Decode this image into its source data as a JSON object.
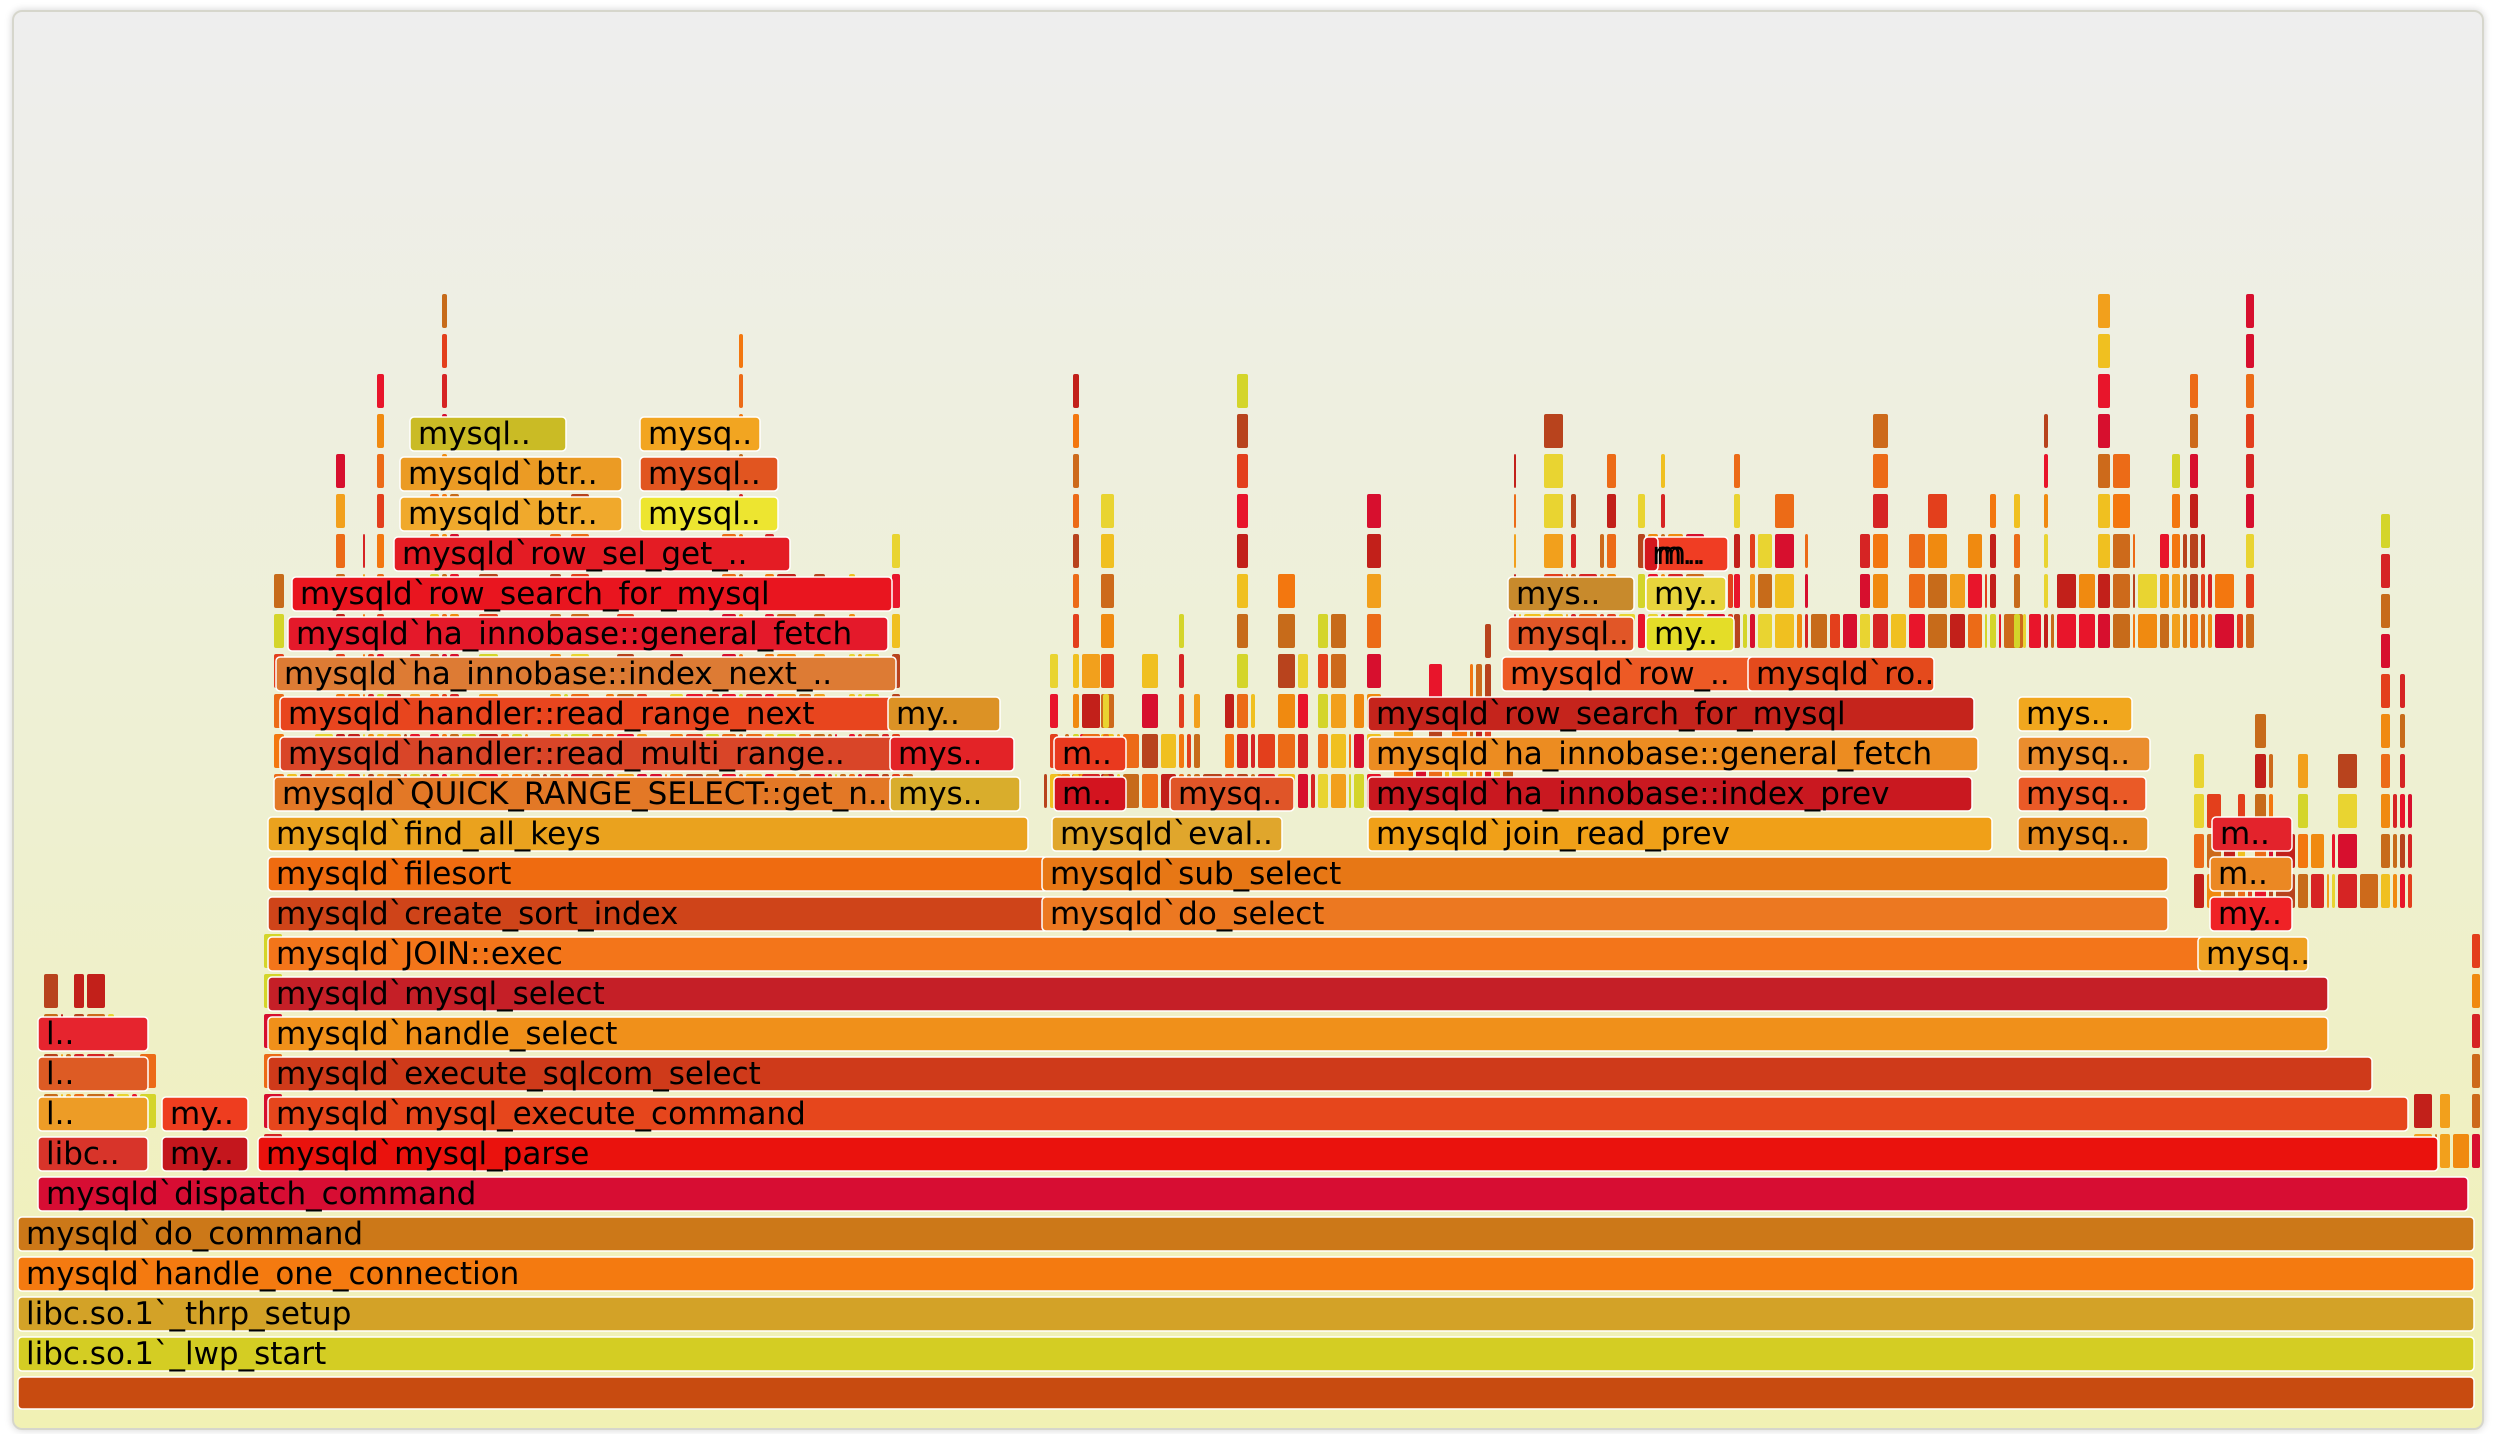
{
  "palette": [
    "#e8152b",
    "#ec6b17",
    "#c2201a",
    "#f2a01c",
    "#d4d52a",
    "#cd6a1b",
    "#f3770f",
    "#d70f2e",
    "#e33f1c",
    "#c76b1a",
    "#f0c020",
    "#d62424",
    "#b8431d",
    "#f08a10",
    "#e9d431"
  ],
  "flamegraph": {
    "frames": [
      {
        "label": "",
        "color": "#c84b10"
      },
      {
        "label": "libc.so.1`_lwp_start",
        "color": "#d4cd23"
      },
      {
        "label": "libc.so.1`_thrp_setup",
        "color": "#d3a227"
      },
      {
        "label": "mysqld`handle_one_connection",
        "color": "#f47a10"
      },
      {
        "label": "mysqld`do_command",
        "color": "#cc7818"
      },
      {
        "label": "mysqld`dispatch_command",
        "color": "#d70d33"
      },
      {
        "label": "libc..",
        "color": "#d8342a"
      },
      {
        "label": "my..",
        "color": "#c4161d"
      },
      {
        "label": "mysqld`mysql_parse",
        "color": "#ea120d"
      },
      {
        "label": "l..",
        "color": "#ed9c26"
      },
      {
        "label": "my..",
        "color": "#ee3d1f"
      },
      {
        "label": "mysqld`mysql_execute_command",
        "color": "#e6461c"
      },
      {
        "label": "l..",
        "color": "#dd5b24"
      },
      {
        "label": "mysqld`execute_sqlcom_select",
        "color": "#cf3a1a"
      },
      {
        "label": "l..",
        "color": "#e6242e"
      },
      {
        "label": "mysqld`handle_select",
        "color": "#f0901a"
      },
      {
        "label": "mysqld`mysql_select",
        "color": "#c51f27"
      },
      {
        "label": "mysqld`JOIN::exec",
        "color": "#f3751a"
      },
      {
        "label": "mysq..",
        "color": "#eea021"
      },
      {
        "label": "mysqld`create_sort_index",
        "color": "#cf4419"
      },
      {
        "label": "mysqld`do_select",
        "color": "#ec7821"
      },
      {
        "label": "my..",
        "color": "#ef2226"
      },
      {
        "label": "mysqld`filesort",
        "color": "#ef6b10"
      },
      {
        "label": "mysqld`sub_select",
        "color": "#e77715"
      },
      {
        "label": "m..",
        "color": "#eb8823"
      },
      {
        "label": "mysqld`find_all_keys",
        "color": "#eaa21e"
      },
      {
        "label": "mysqld`eval..",
        "color": "#e0a62c"
      },
      {
        "label": "mysqld`join_read_prev",
        "color": "#f0a018"
      },
      {
        "label": "mysq..",
        "color": "#e58b21"
      },
      {
        "label": "m..",
        "color": "#e3232c"
      },
      {
        "label": "mysqld`QUICK_RANGE_SELECT::get_n..",
        "color": "#e37826"
      },
      {
        "label": "mys..",
        "color": "#d9ad2c"
      },
      {
        "label": "m..",
        "color": "#d3141f"
      },
      {
        "label": "mysq..",
        "color": "#e05528"
      },
      {
        "label": "mysqld`ha_innobase::index_prev",
        "color": "#c91820"
      },
      {
        "label": "mysq..",
        "color": "#ea5a27"
      },
      {
        "label": "mysqld`handler::read_multi_range..",
        "color": "#d94528"
      },
      {
        "label": "mys..",
        "color": "#e32327"
      },
      {
        "label": "m..",
        "color": "#e9391e"
      },
      {
        "label": "mysqld`ha_innobase::general_fetch",
        "color": "#ec8c21"
      },
      {
        "label": "mysq..",
        "color": "#ea8d2e"
      },
      {
        "label": "mysqld`handler::read_range_next",
        "color": "#e8451e"
      },
      {
        "label": "my..",
        "color": "#dc9225"
      },
      {
        "label": "mysqld`row_search_for_mysql",
        "color": "#c5241c"
      },
      {
        "label": "mys..",
        "color": "#f1a71e"
      },
      {
        "label": "mysqld`ha_innobase::index_next_..",
        "color": "#dd7b34"
      },
      {
        "label": "mysqld`row_..",
        "color": "#ed5a25"
      },
      {
        "label": "mysqld`ro..",
        "color": "#e44a1c"
      },
      {
        "label": "mysqld`ha_innobase::general_fetch",
        "color": "#e4192a"
      },
      {
        "label": "mysql..",
        "color": "#e15627"
      },
      {
        "label": "my..",
        "color": "#e4dd28"
      },
      {
        "label": "mysqld`row_search_for_mysql",
        "color": "#e9151f"
      },
      {
        "label": "mys..",
        "color": "#c88a2c"
      },
      {
        "label": "my..",
        "color": "#e7d43c"
      },
      {
        "label": "m..",
        "color": "#f03d23"
      },
      {
        "label": "mysqld`row_sel_get_..",
        "color": "#e41c24"
      },
      {
        "label": "mysqld`btr..",
        "color": "#f0a92c"
      },
      {
        "label": "mysql..",
        "color": "#ede530"
      },
      {
        "label": "mysqld`btr..",
        "color": "#eb9b24"
      },
      {
        "label": "mysql..",
        "color": "#e15520"
      },
      {
        "label": "mysql..",
        "color": "#cabb25"
      },
      {
        "label": "mysq..",
        "color": "#f2a521"
      },
      {
        "label": "m..",
        "color": "#d4171d"
      }
    ]
  }
}
